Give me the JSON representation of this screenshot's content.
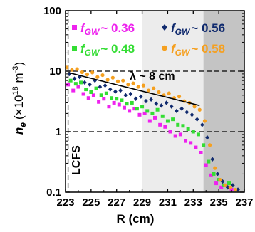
{
  "chart_data": {
    "type": "scatter",
    "xlabel": "R (cm)",
    "ylabel_main": "n",
    "ylabel_sub": "e",
    "ylabel_unit_prefix": "(×10",
    "ylabel_unit_exp": "18",
    "ylabel_unit_mid": " m",
    "ylabel_unit_exp2": "-3",
    "ylabel_unit_suffix": ")",
    "xlim": [
      223,
      237
    ],
    "ylim": [
      0.1,
      100
    ],
    "yscale": "log",
    "x_ticks": [
      "223",
      "225",
      "227",
      "229",
      "231",
      "233",
      "235",
      "237"
    ],
    "x_tick_values": [
      223,
      225,
      227,
      229,
      231,
      233,
      235,
      237
    ],
    "y_ticks": [
      "0.1",
      "1",
      "10",
      "100"
    ],
    "y_tick_values": [
      0.1,
      1,
      10,
      100
    ],
    "shaded_regions": [
      {
        "x0": 229,
        "x1": 233.8,
        "color": "#ececec"
      },
      {
        "x0": 233.8,
        "x1": 237,
        "color": "#c4c4c4"
      }
    ],
    "hlines": [
      1,
      10
    ],
    "vline": 223.2,
    "annotations": {
      "lcfs": "LCFS",
      "lambda": "λ ~ 8 cm"
    },
    "legend": [
      {
        "prefix": "f",
        "sub": "GW",
        "value": "~ 0.36",
        "color": "#ee22ee",
        "marker": "square"
      },
      {
        "prefix": "f",
        "sub": "GW",
        "value": "~ 0.56",
        "color": "#102a6e",
        "marker": "diamond"
      },
      {
        "prefix": "f",
        "sub": "GW",
        "value": "~ 0.48",
        "color": "#33dd33",
        "marker": "square"
      },
      {
        "prefix": "f",
        "sub": "GW",
        "value": "~ 0.58",
        "color": "#f5a020",
        "marker": "circle"
      }
    ],
    "fit_line": {
      "x": [
        223.2,
        233.5
      ],
      "y": [
        9.5,
        2.7
      ]
    },
    "series": [
      {
        "label": "~ 0.36",
        "color": "#ee22ee",
        "marker": "square",
        "x": [
          223.2,
          223.6,
          224.0,
          224.4,
          224.8,
          225.2,
          225.6,
          226.0,
          226.4,
          226.8,
          227.2,
          227.6,
          228.0,
          228.4,
          228.8,
          229.2,
          229.6,
          230.0,
          230.4,
          230.8,
          231.2,
          231.6,
          232.0,
          232.4,
          232.8,
          233.2,
          233.6,
          234.0,
          234.4,
          234.8,
          235.2,
          235.6,
          236.0
        ],
        "y": [
          6.0,
          4.8,
          5.5,
          4.2,
          3.6,
          4.0,
          3.1,
          3.5,
          2.6,
          3.0,
          2.8,
          2.5,
          2.2,
          2.4,
          1.9,
          2.0,
          1.5,
          1.7,
          1.3,
          1.2,
          1.0,
          0.85,
          0.9,
          0.7,
          0.65,
          0.55,
          0.45,
          0.28,
          0.19,
          0.14,
          0.12,
          0.13,
          0.11
        ]
      },
      {
        "label": "~ 0.48",
        "color": "#33dd33",
        "marker": "square",
        "x": [
          223.4,
          223.8,
          224.2,
          224.6,
          225.0,
          225.4,
          225.8,
          226.2,
          226.6,
          227.0,
          227.4,
          227.8,
          228.2,
          228.6,
          229.0,
          229.4,
          229.8,
          230.2,
          230.6,
          231.0,
          231.4,
          231.8,
          232.2,
          232.6,
          233.0,
          233.4,
          233.8,
          234.2,
          234.6,
          235.0,
          235.4,
          235.8
        ],
        "y": [
          7.0,
          6.2,
          6.5,
          5.0,
          4.5,
          5.2,
          4.0,
          4.3,
          3.6,
          3.5,
          3.3,
          2.9,
          3.0,
          2.4,
          2.6,
          2.2,
          2.0,
          2.3,
          1.8,
          1.5,
          1.6,
          1.3,
          1.25,
          1.1,
          1.0,
          0.9,
          0.6,
          0.32,
          0.2,
          0.16,
          0.13,
          0.14
        ]
      },
      {
        "label": "~ 0.56",
        "color": "#102a6e",
        "marker": "diamond",
        "x": [
          223.3,
          223.7,
          224.1,
          224.5,
          224.9,
          225.3,
          225.7,
          226.1,
          226.5,
          226.9,
          227.3,
          227.7,
          228.1,
          228.5,
          228.9,
          229.3,
          229.7,
          230.1,
          230.5,
          230.9,
          231.3,
          231.7,
          232.1,
          232.5,
          232.9,
          233.3,
          233.7,
          234.1,
          234.5,
          234.9,
          235.3,
          235.7,
          236.1,
          236.5
        ],
        "y": [
          9.0,
          7.5,
          8.0,
          6.5,
          6.0,
          7.0,
          5.5,
          5.8,
          5.0,
          4.6,
          4.8,
          4.0,
          4.2,
          3.5,
          3.8,
          3.2,
          3.4,
          2.9,
          2.7,
          3.0,
          2.6,
          2.2,
          2.4,
          2.1,
          1.9,
          1.6,
          1.3,
          0.8,
          0.35,
          0.2,
          0.15,
          0.12,
          0.13,
          0.11
        ]
      },
      {
        "label": "~ 0.58",
        "color": "#f5a020",
        "marker": "circle",
        "x": [
          223.1,
          223.5,
          223.9,
          224.3,
          224.7,
          225.1,
          225.5,
          225.9,
          226.3,
          226.7,
          227.1,
          227.5,
          227.9,
          228.3,
          228.7,
          229.1,
          229.5,
          229.9,
          230.3,
          230.7,
          231.1,
          231.5,
          231.9,
          232.3,
          232.7,
          233.1,
          233.5,
          233.9,
          234.3,
          234.7,
          235.1,
          235.5,
          235.9,
          236.3
        ],
        "y": [
          11.5,
          10.5,
          10.8,
          9.6,
          8.8,
          9.5,
          8.0,
          8.6,
          7.2,
          7.8,
          6.8,
          7.0,
          6.0,
          6.3,
          5.5,
          5.8,
          4.8,
          5.2,
          4.5,
          4.0,
          4.3,
          3.6,
          3.8,
          3.2,
          3.0,
          2.6,
          2.3,
          1.5,
          0.6,
          0.25,
          0.16,
          0.13,
          0.12,
          0.11
        ]
      }
    ]
  }
}
